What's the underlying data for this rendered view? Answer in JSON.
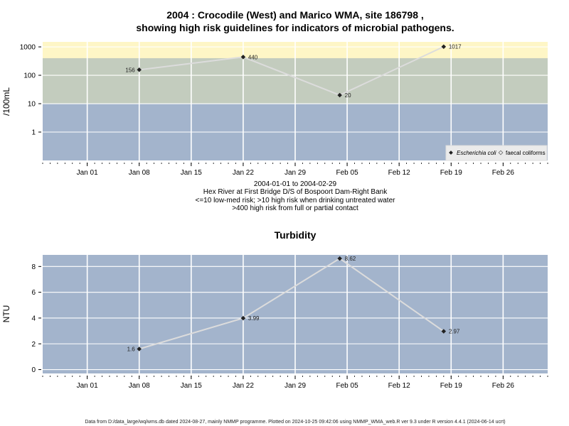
{
  "chart_data": [
    {
      "type": "line",
      "title_line1": "2004 : Crocodile (West) and Marico WMA, site 186798 ,",
      "title_line2": "showing high risk guidelines for indicators of microbial pathogens.",
      "ylabel": "/100mL",
      "yscale": "log",
      "ylim": [
        0.1,
        1500
      ],
      "yticks": [
        "1",
        "10",
        "100",
        "1000"
      ],
      "xlim": [
        "2003-12-26",
        "2004-03-03"
      ],
      "xticks": [
        "Jan 01",
        "Jan 08",
        "Jan 15",
        "Jan 22",
        "Jan 29",
        "Feb 05",
        "Feb 12",
        "Feb 19",
        "Feb 26"
      ],
      "bands": [
        {
          "from": 0.1,
          "to": 10,
          "color": "#a3b4cc"
        },
        {
          "from": 10,
          "to": 400,
          "color": "#c3ccbe"
        },
        {
          "from": 400,
          "to": 1500,
          "color": "#fef6c6"
        }
      ],
      "series": [
        {
          "name": "Escherichia coli",
          "x": [
            "2004-01-08",
            "2004-01-22",
            "2004-02-04",
            "2004-02-18"
          ],
          "y": [
            156,
            440,
            20,
            1017
          ],
          "labels": [
            "156",
            "440",
            "20",
            "1017"
          ]
        }
      ],
      "legend": {
        "position": "bottom-right",
        "entries": [
          "Escherichia coli",
          "faecal coliforms"
        ]
      },
      "caption": [
        "2004-01-01 to 2004-02-29",
        "Hex River at First Bridge D/S of Bospoort Dam-Right Bank",
        "<=10 low-med risk; >10 high risk when drinking untreated water",
        ">400 high risk from full or partial contact"
      ]
    },
    {
      "type": "line",
      "title": "Turbidity",
      "ylabel": "NTU",
      "ylim": [
        -0.3,
        8.9
      ],
      "yticks": [
        0,
        2,
        4,
        6,
        8
      ],
      "xlim": [
        "2003-12-26",
        "2004-03-03"
      ],
      "xticks": [
        "Jan 01",
        "Jan 08",
        "Jan 15",
        "Jan 22",
        "Jan 29",
        "Feb 05",
        "Feb 12",
        "Feb 19",
        "Feb 26"
      ],
      "series": [
        {
          "name": "",
          "x": [
            "2004-01-08",
            "2004-01-22",
            "2004-02-04",
            "2004-02-18"
          ],
          "y": [
            1.6,
            3.99,
            8.62,
            2.97
          ],
          "labels": [
            "1.6",
            "3.99",
            "8.62",
            "2.97"
          ]
        }
      ]
    }
  ],
  "footer": "Data from D:/data_large/wq/wms.db dated 2024-08-27, mainly NMMP programme. Plotted on 2024-10-25 09:42:06 using NMMP_WMA_web.R ver 9.3 under R version 4.4.1 (2024-06-14 ucrt)",
  "colors": {
    "panel": "#a3b4cc",
    "grid": "#ffffff",
    "line": "#dcdcdc",
    "point": "#222222"
  }
}
